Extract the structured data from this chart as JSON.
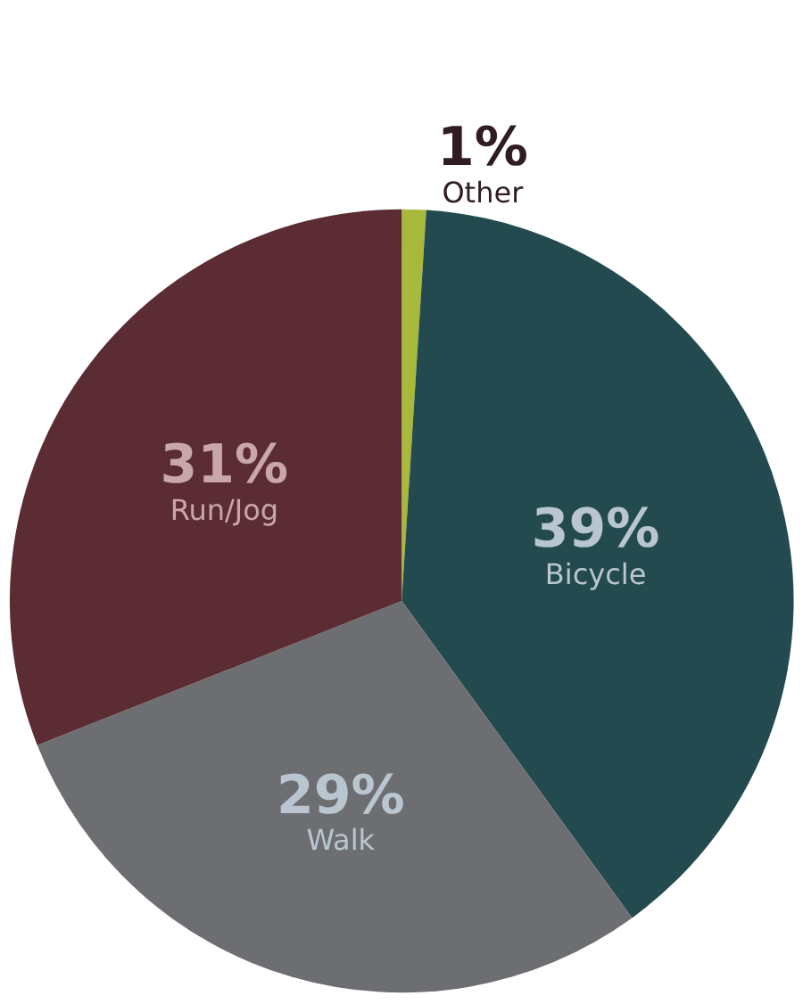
{
  "chart_data": {
    "type": "pie",
    "categories": [
      "Other",
      "Bicycle",
      "Walk",
      "Run/Jog"
    ],
    "values": [
      1,
      39,
      29,
      31
    ],
    "colors": [
      "#a8b83a",
      "#234a4f",
      "#6d6e71",
      "#5c2c34"
    ],
    "value_labels": [
      "1%",
      "39%",
      "29%",
      "31%"
    ]
  }
}
